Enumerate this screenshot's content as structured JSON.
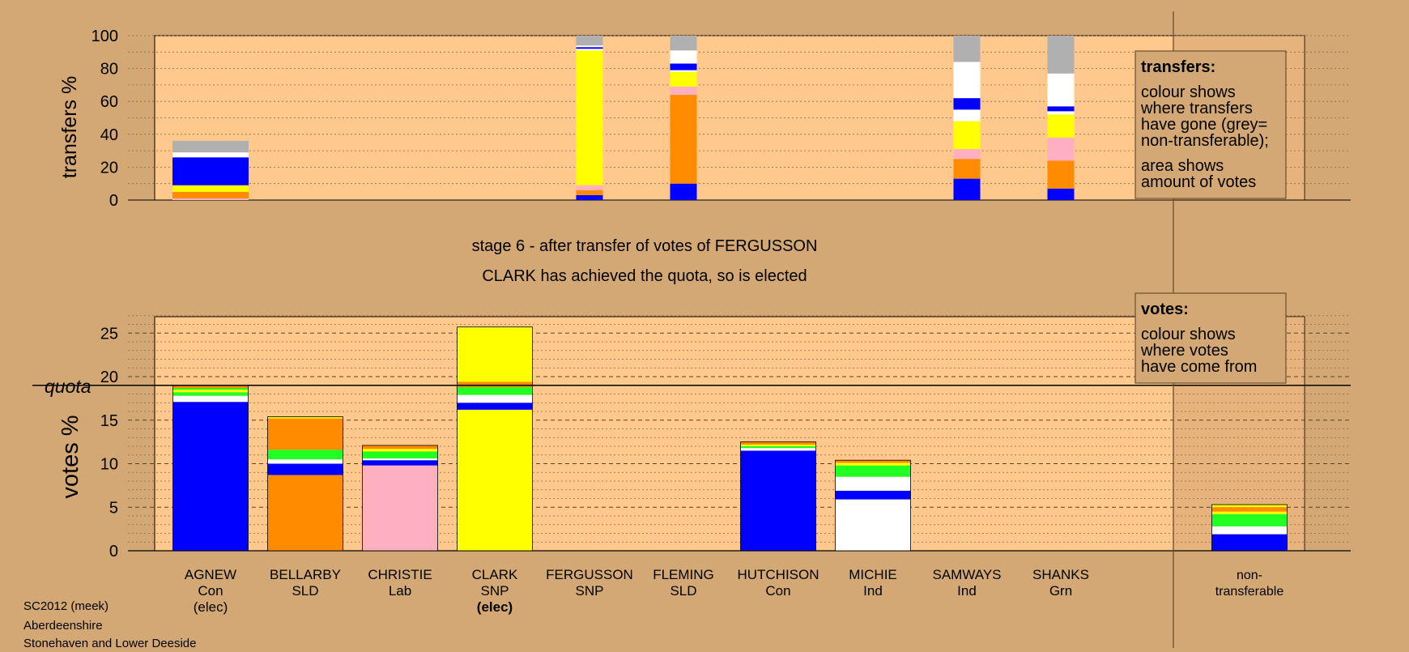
{
  "colors": {
    "background": "#d4a874",
    "panel": "#ffc98e",
    "shade": "#c89a68",
    "Con": "#0000ff",
    "SLD": "#ff8c00",
    "Lab": "#ffb0c0",
    "SNP": "#ffff00",
    "Ind": "#ffffff",
    "Grn": "#22ff22",
    "nontransferable": "#b0b0b0"
  },
  "stage": {
    "title": "stage 6 - after transfer of votes of FERGUSSON",
    "subtitle": "CLARK has achieved the quota, so is elected"
  },
  "footer": [
    "SC2012 (meek)",
    "Aberdeenshire",
    "Stonehaven and Lower Deeside"
  ],
  "legend_transfers": {
    "heading": "transfers:",
    "para1": [
      "colour shows",
      "where transfers",
      "have gone (grey=",
      "non-transferable);"
    ],
    "para2": [
      "area shows",
      "amount of votes"
    ]
  },
  "legend_votes": {
    "heading": "votes:",
    "para1": [
      "colour shows",
      "where votes",
      "have come from"
    ]
  },
  "chart_data": [
    {
      "type": "bar",
      "stacked": true,
      "ylabel": "transfers %",
      "ylim": [
        0,
        100
      ],
      "yticks": [
        0,
        20,
        40,
        60,
        80,
        100
      ],
      "categories": [
        "AGNEW",
        "BELLARBY",
        "CHRISTIE",
        "CLARK",
        "FERGUSSON",
        "FLEMING",
        "HUTCHISON",
        "MICHIE",
        "SAMWAYS",
        "SHANKS"
      ],
      "bars": [
        {
          "candidate": "AGNEW",
          "segments": [
            {
              "color": "Lab",
              "value": 1
            },
            {
              "color": "SLD",
              "value": 4
            },
            {
              "color": "SNP",
              "value": 4
            },
            {
              "color": "Con",
              "value": 17
            },
            {
              "color": "Ind",
              "value": 3
            },
            {
              "color": "nontransferable",
              "value": 7
            }
          ]
        },
        {
          "candidate": "FERGUSSON",
          "segments": [
            {
              "color": "Con",
              "value": 3
            },
            {
              "color": "SLD",
              "value": 3
            },
            {
              "color": "Lab",
              "value": 3
            },
            {
              "color": "SNP",
              "value": 82
            },
            {
              "color": "Ind",
              "value": 1
            },
            {
              "color": "Con",
              "value": 1
            },
            {
              "color": "Ind",
              "value": 1
            },
            {
              "color": "nontransferable",
              "value": 6
            }
          ]
        },
        {
          "candidate": "FLEMING",
          "segments": [
            {
              "color": "Con",
              "value": 10
            },
            {
              "color": "SLD",
              "value": 54
            },
            {
              "color": "Lab",
              "value": 5
            },
            {
              "color": "SNP",
              "value": 9
            },
            {
              "color": "Ind",
              "value": 1
            },
            {
              "color": "Con",
              "value": 4
            },
            {
              "color": "Ind",
              "value": 8
            },
            {
              "color": "nontransferable",
              "value": 9
            }
          ]
        },
        {
          "candidate": "SAMWAYS",
          "segments": [
            {
              "color": "Con",
              "value": 13
            },
            {
              "color": "SLD",
              "value": 12
            },
            {
              "color": "Lab",
              "value": 6
            },
            {
              "color": "SNP",
              "value": 17
            },
            {
              "color": "Ind",
              "value": 7
            },
            {
              "color": "Con",
              "value": 7
            },
            {
              "color": "Ind",
              "value": 22
            },
            {
              "color": "nontransferable",
              "value": 16
            }
          ]
        },
        {
          "candidate": "SHANKS",
          "segments": [
            {
              "color": "Con",
              "value": 7
            },
            {
              "color": "SLD",
              "value": 17
            },
            {
              "color": "Lab",
              "value": 14
            },
            {
              "color": "SNP",
              "value": 14
            },
            {
              "color": "Ind",
              "value": 2
            },
            {
              "color": "Con",
              "value": 3
            },
            {
              "color": "Ind",
              "value": 20
            },
            {
              "color": "nontransferable",
              "value": 23
            }
          ]
        }
      ]
    },
    {
      "type": "bar",
      "stacked": true,
      "ylabel": "votes %",
      "ylim": [
        0,
        27
      ],
      "yticks": [
        0,
        5,
        10,
        15,
        20,
        25
      ],
      "quota": 19,
      "quota_label": "quota",
      "categories": [
        "AGNEW",
        "BELLARBY",
        "CHRISTIE",
        "CLARK",
        "FERGUSSON",
        "FLEMING",
        "HUTCHISON",
        "MICHIE",
        "SAMWAYS",
        "SHANKS",
        "non-transferable"
      ],
      "candidates": [
        {
          "name": "AGNEW",
          "party": "Con",
          "status": "(elec)",
          "status_bold": false,
          "segments": [
            {
              "color": "Con",
              "value": 17.1
            },
            {
              "color": "Ind",
              "value": 0.7
            },
            {
              "color": "Grn",
              "value": 0.4
            },
            {
              "color": "SNP",
              "value": 0.3
            },
            {
              "color": "Grn",
              "value": 0.2
            },
            {
              "color": "SLD",
              "value": 0.3
            }
          ]
        },
        {
          "name": "BELLARBY",
          "party": "SLD",
          "status": "",
          "status_bold": false,
          "segments": [
            {
              "color": "SLD",
              "value": 8.7
            },
            {
              "color": "Con",
              "value": 1.3
            },
            {
              "color": "Ind",
              "value": 0.5
            },
            {
              "color": "Grn",
              "value": 1.1
            },
            {
              "color": "SLD",
              "value": 3.6
            },
            {
              "color": "SNP",
              "value": 0.2
            }
          ]
        },
        {
          "name": "CHRISTIE",
          "party": "Lab",
          "status": "",
          "status_bold": false,
          "segments": [
            {
              "color": "Lab",
              "value": 9.8
            },
            {
              "color": "Con",
              "value": 0.6
            },
            {
              "color": "Ind",
              "value": 0.2
            },
            {
              "color": "Grn",
              "value": 0.8
            },
            {
              "color": "SNP",
              "value": 0.3
            },
            {
              "color": "SLD",
              "value": 0.4
            }
          ]
        },
        {
          "name": "CLARK",
          "party": "SNP",
          "status": "(elec)",
          "status_bold": true,
          "segments": [
            {
              "color": "SNP",
              "value": 16.2
            },
            {
              "color": "Con",
              "value": 0.8
            },
            {
              "color": "Ind",
              "value": 0.9
            },
            {
              "color": "Grn",
              "value": 0.9
            },
            {
              "color": "SLD",
              "value": 0.6
            },
            {
              "color": "SNP",
              "value": 6.3
            }
          ]
        },
        {
          "name": "FERGUSSON",
          "party": "SNP",
          "status": "",
          "status_bold": false,
          "segments": []
        },
        {
          "name": "FLEMING",
          "party": "SLD",
          "status": "",
          "status_bold": false,
          "segments": []
        },
        {
          "name": "HUTCHISON",
          "party": "Con",
          "status": "",
          "status_bold": false,
          "segments": [
            {
              "color": "Con",
              "value": 11.5
            },
            {
              "color": "Ind",
              "value": 0.3
            },
            {
              "color": "Grn",
              "value": 0.2
            },
            {
              "color": "SNP",
              "value": 0.2
            },
            {
              "color": "SLD",
              "value": 0.3
            }
          ]
        },
        {
          "name": "MICHIE",
          "party": "Ind",
          "status": "",
          "status_bold": false,
          "segments": [
            {
              "color": "Ind",
              "value": 5.9
            },
            {
              "color": "Con",
              "value": 1
            },
            {
              "color": "Ind",
              "value": 1.6
            },
            {
              "color": "Grn",
              "value": 1.3
            },
            {
              "color": "SNP",
              "value": 0.3
            },
            {
              "color": "SLD",
              "value": 0.3
            }
          ]
        },
        {
          "name": "SAMWAYS",
          "party": "Ind",
          "status": "",
          "status_bold": false,
          "segments": []
        },
        {
          "name": "SHANKS",
          "party": "Grn",
          "status": "",
          "status_bold": false,
          "segments": []
        },
        {
          "name": "non-",
          "party": "transferable",
          "status": "",
          "status_bold": false,
          "segments": [
            {
              "color": "Con",
              "value": 1.9
            },
            {
              "color": "Ind",
              "value": 0.9
            },
            {
              "color": "Grn",
              "value": 1.4
            },
            {
              "color": "SNP",
              "value": 0.3
            },
            {
              "color": "SLD",
              "value": 0.5
            },
            {
              "color": "SNP",
              "value": 0.3
            }
          ]
        }
      ]
    }
  ]
}
